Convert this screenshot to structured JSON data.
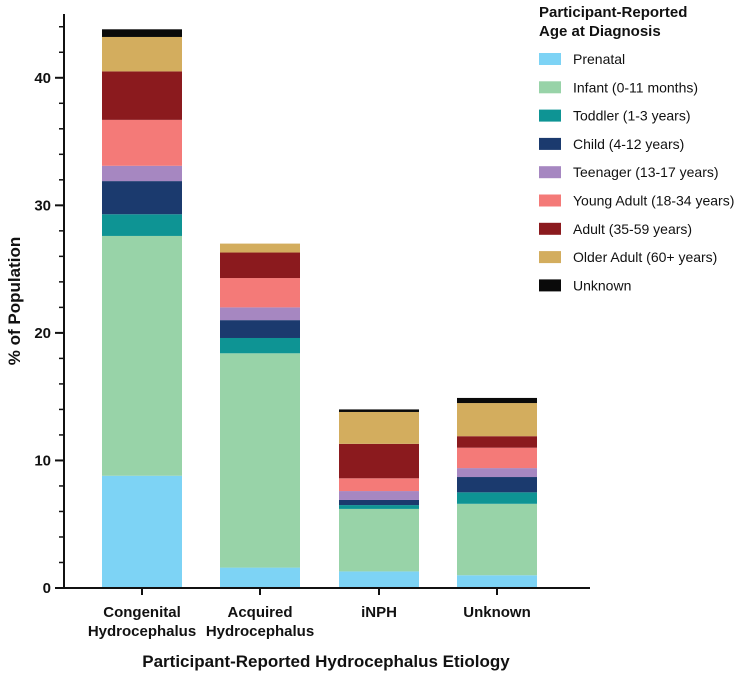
{
  "chart_data": {
    "type": "bar",
    "stacked": true,
    "xlabel": "Participant-Reported Hydrocephalus Etiology",
    "ylabel": "% of Population",
    "ylim": [
      0,
      45
    ],
    "yticks": [
      0,
      10,
      20,
      30,
      40
    ],
    "y_minor_step": 2,
    "categories": [
      [
        "Congenital",
        "Hydrocephalus"
      ],
      [
        "Acquired",
        "Hydrocephalus"
      ],
      [
        "iNPH"
      ],
      [
        "Unknown"
      ]
    ],
    "legend_title": [
      "Participant-Reported",
      "Age at Diagnosis"
    ],
    "legend_position": "top-right",
    "series": [
      {
        "name": "Prenatal",
        "color": "#7dd3f5",
        "values": [
          8.8,
          1.6,
          1.3,
          1.0
        ]
      },
      {
        "name": "Infant (0-11 months)",
        "color": "#98d3a8",
        "values": [
          18.8,
          16.8,
          4.9,
          5.6
        ]
      },
      {
        "name": "Toddler (1-3 years)",
        "color": "#0e9494",
        "values": [
          1.7,
          1.2,
          0.3,
          0.9
        ]
      },
      {
        "name": "Child (4-12 years)",
        "color": "#1b3a6e",
        "values": [
          2.6,
          1.4,
          0.4,
          1.2
        ]
      },
      {
        "name": "Teenager (13-17 years)",
        "color": "#a687c1",
        "values": [
          1.2,
          1.0,
          0.7,
          0.7
        ]
      },
      {
        "name": "Young Adult (18-34 years)",
        "color": "#f47a78",
        "values": [
          3.6,
          2.3,
          1.0,
          1.6
        ]
      },
      {
        "name": "Adult (35-59 years)",
        "color": "#8b1a1e",
        "values": [
          3.8,
          2.0,
          2.7,
          0.9
        ]
      },
      {
        "name": "Older Adult (60+ years)",
        "color": "#d3ad5e",
        "values": [
          2.7,
          0.7,
          2.5,
          2.6
        ]
      },
      {
        "name": "Unknown",
        "color": "#0a0a0a",
        "values": [
          0.6,
          0.0,
          0.2,
          0.4
        ]
      }
    ]
  }
}
